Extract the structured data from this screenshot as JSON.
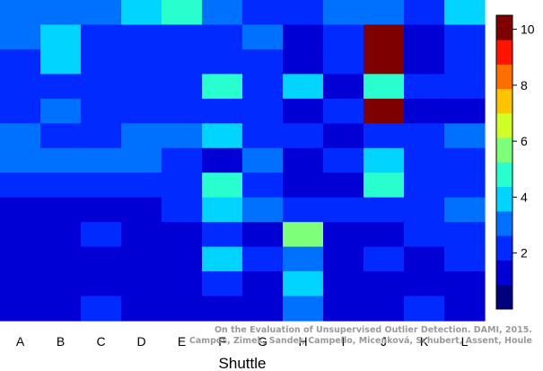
{
  "chart_data": {
    "type": "heatmap",
    "xlabel": "Shuttle",
    "categories": [
      "A",
      "B",
      "C",
      "D",
      "E",
      "F",
      "G",
      "H",
      "I",
      "J",
      "K",
      "L"
    ],
    "values": [
      [
        3,
        3,
        3,
        4,
        5,
        3,
        2,
        2,
        3,
        3,
        2,
        4
      ],
      [
        3,
        4,
        2,
        2,
        2,
        2,
        3,
        1,
        2,
        10,
        1,
        2
      ],
      [
        2,
        4,
        2,
        2,
        2,
        2,
        2,
        1,
        2,
        10,
        1,
        2
      ],
      [
        2,
        2,
        2,
        2,
        2,
        5,
        2,
        4,
        1,
        5,
        2,
        2
      ],
      [
        2,
        3,
        2,
        2,
        2,
        2,
        2,
        1,
        2,
        10,
        1,
        1
      ],
      [
        3,
        2,
        2,
        3,
        3,
        4,
        2,
        2,
        1,
        2,
        2,
        3
      ],
      [
        3,
        3,
        3,
        3,
        2,
        1,
        3,
        1,
        2,
        4,
        2,
        2
      ],
      [
        2,
        2,
        2,
        2,
        2,
        5,
        2,
        1,
        1,
        5,
        2,
        2
      ],
      [
        1,
        1,
        1,
        1,
        2,
        4,
        3,
        2,
        2,
        2,
        2,
        3
      ],
      [
        1,
        1,
        2,
        1,
        1,
        2,
        1,
        6,
        1,
        1,
        2,
        2
      ],
      [
        1,
        1,
        1,
        1,
        1,
        4,
        2,
        3,
        1,
        2,
        1,
        2
      ],
      [
        1,
        1,
        1,
        1,
        1,
        2,
        1,
        4,
        1,
        1,
        1,
        1
      ],
      [
        1,
        1,
        2,
        1,
        1,
        1,
        1,
        3,
        1,
        1,
        2,
        1
      ]
    ],
    "colorbar": {
      "range": [
        0,
        10.5
      ],
      "ticks": [
        "2",
        "4",
        "6",
        "8",
        "10"
      ],
      "colors": [
        "#00007F",
        "#0000D4",
        "#002AFF",
        "#0070FF",
        "#00D4FF",
        "#29FFCE",
        "#7DFF7A",
        "#CEFF29",
        "#FFC400",
        "#FF6F00",
        "#FF1400",
        "#7F0000"
      ]
    },
    "watermark": [
      "On the Evaluation of Unsupervised Outlier Detection. DAMI, 2015.",
      "Campos, Zimek, Sander, Campello, Micenková, Schubert, Assent, Houle"
    ]
  }
}
